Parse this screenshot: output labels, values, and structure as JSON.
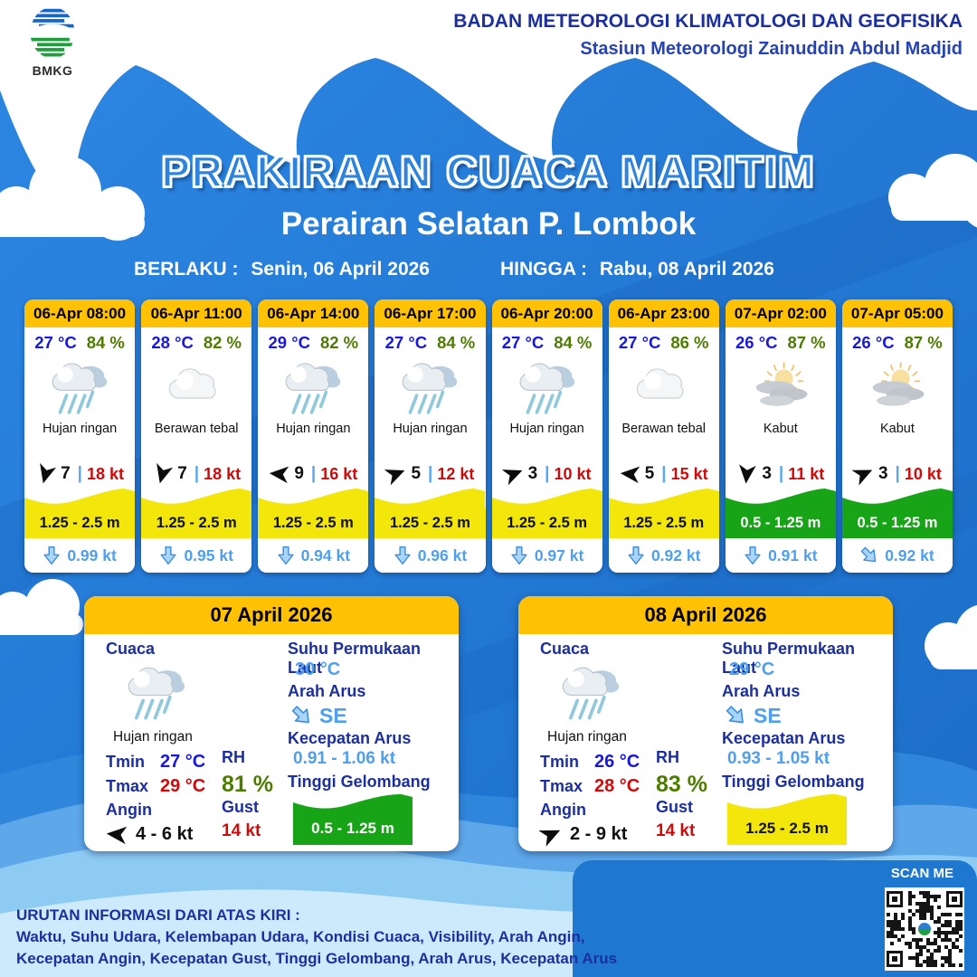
{
  "header": {
    "org_line1": "BADAN METEOROLOGI KLIMATOLOGI DAN GEOFISIKA",
    "org_line2": "Stasiun Meteorologi Zainuddin Abdul Madjid",
    "logo_text": "BMKG"
  },
  "title": {
    "main": "PRAKIRAAN CUACA MARITIM",
    "area": "Perairan Selatan P. Lombok",
    "valid_from_label": "BERLAKU :",
    "valid_from": "Senin, 06 April 2026",
    "valid_to_label": "HINGGA :",
    "valid_to": "Rabu, 08 April 2026"
  },
  "ui": {
    "wind_separator": "|"
  },
  "colors": {
    "primary_blue": "#2176d2",
    "header_yellow": "#ffc103",
    "wave_yellow": "#f2e60a",
    "wave_green": "#17a517",
    "navy_text": "#1c2f9e",
    "temp_blue": "#1717e0",
    "humidity_green": "#4e7c00",
    "gust_red": "#cf0a0a",
    "current_lightblue": "#4d9ff0"
  },
  "hourly": [
    {
      "time": "06-Apr 08:00",
      "temp": "27 °C",
      "humidity": "84 %",
      "icon": "rain",
      "icon_ref": "#ic-rain",
      "condition": "Hujan ringan",
      "wind_dir_deg": 105,
      "wind_speed": "7",
      "wind_gust": "18 kt",
      "wave_height": "1.25 - 2.5 m",
      "wave_level": "yellow",
      "current_dir_deg": 0,
      "current_speed": "0.99 kt"
    },
    {
      "time": "06-Apr 11:00",
      "temp": "28 °C",
      "humidity": "82 %",
      "icon": "cloud",
      "icon_ref": "#ic-cloud",
      "condition": "Berawan tebal",
      "wind_dir_deg": 105,
      "wind_speed": "7",
      "wind_gust": "18 kt",
      "wave_height": "1.25 - 2.5 m",
      "wave_level": "yellow",
      "current_dir_deg": 0,
      "current_speed": "0.95 kt"
    },
    {
      "time": "06-Apr 14:00",
      "temp": "29 °C",
      "humidity": "82 %",
      "icon": "rain",
      "icon_ref": "#ic-rain",
      "condition": "Hujan ringan",
      "wind_dir_deg": 185,
      "wind_speed": "9",
      "wind_gust": "16 kt",
      "wave_height": "1.25 - 2.5 m",
      "wave_level": "yellow",
      "current_dir_deg": 0,
      "current_speed": "0.94 kt"
    },
    {
      "time": "06-Apr 17:00",
      "temp": "27 °C",
      "humidity": "84 %",
      "icon": "rain",
      "icon_ref": "#ic-rain",
      "condition": "Hujan ringan",
      "wind_dir_deg": 338,
      "wind_speed": "5",
      "wind_gust": "12 kt",
      "wave_height": "1.25 - 2.5 m",
      "wave_level": "yellow",
      "current_dir_deg": 0,
      "current_speed": "0.96 kt"
    },
    {
      "time": "06-Apr 20:00",
      "temp": "27 °C",
      "humidity": "84 %",
      "icon": "rain",
      "icon_ref": "#ic-rain",
      "condition": "Hujan ringan",
      "wind_dir_deg": 338,
      "wind_speed": "3",
      "wind_gust": "10 kt",
      "wave_height": "1.25 - 2.5 m",
      "wave_level": "yellow",
      "current_dir_deg": 0,
      "current_speed": "0.97 kt"
    },
    {
      "time": "06-Apr 23:00",
      "temp": "27 °C",
      "humidity": "86 %",
      "icon": "cloud",
      "icon_ref": "#ic-cloud",
      "condition": "Berawan tebal",
      "wind_dir_deg": 185,
      "wind_speed": "5",
      "wind_gust": "15 kt",
      "wave_height": "1.25 - 2.5 m",
      "wave_level": "yellow",
      "current_dir_deg": 0,
      "current_speed": "0.92 kt"
    },
    {
      "time": "07-Apr 02:00",
      "temp": "26 °C",
      "humidity": "87 %",
      "icon": "fog",
      "icon_ref": "#ic-fog",
      "condition": "Kabut",
      "wind_dir_deg": 95,
      "wind_speed": "3",
      "wind_gust": "11 kt",
      "wave_height": "0.5 - 1.25 m",
      "wave_level": "green",
      "current_dir_deg": 0,
      "current_speed": "0.91 kt"
    },
    {
      "time": "07-Apr 05:00",
      "temp": "26 °C",
      "humidity": "87 %",
      "icon": "fog",
      "icon_ref": "#ic-fog",
      "condition": "Kabut",
      "wind_dir_deg": 335,
      "wind_speed": "3",
      "wind_gust": "10 kt",
      "wave_height": "0.5 - 1.25 m",
      "wave_level": "green",
      "current_dir_deg": -45,
      "current_speed": "0.92 kt"
    }
  ],
  "daily_labels": {
    "cuaca": "Cuaca",
    "tmin": "Tmin",
    "tmax": "Tmax",
    "angin": "Angin",
    "rh": "RH",
    "gust": "Gust",
    "sst": "Suhu Permukaan Laut",
    "arah_arus": "Arah Arus",
    "kecepatan_arus": "Kecepatan Arus",
    "tinggi_gelombang": "Tinggi Gelombang"
  },
  "daily": [
    {
      "date": "07 April 2026",
      "icon": "rain",
      "icon_ref": "#ic-rain",
      "condition": "Hujan ringan",
      "tmin": "27 °C",
      "tmax": "29 °C",
      "wind_dir_deg": 185,
      "wind_range": "4 - 6 kt",
      "rh": "81 %",
      "gust": "14 kt",
      "sst": "30 °C",
      "current_dir": "SE",
      "current_dir_deg": -45,
      "current_range": "0.91 - 1.06 kt",
      "wave_height": "0.5 - 1.25 m",
      "wave_level": "green"
    },
    {
      "date": "08 April 2026",
      "icon": "rain",
      "icon_ref": "#ic-rain",
      "condition": "Hujan ringan",
      "tmin": "26 °C",
      "tmax": "28 °C",
      "wind_dir_deg": 335,
      "wind_range": "2 - 9 kt",
      "rh": "83 %",
      "gust": "14 kt",
      "sst": "29 °C",
      "current_dir": "SE",
      "current_dir_deg": -45,
      "current_range": "0.93 - 1.05 kt",
      "wave_height": "1.25 - 2.5 m",
      "wave_level": "yellow"
    }
  ],
  "footer": {
    "heading": "URUTAN INFORMASI DARI ATAS KIRI :",
    "line2": "Waktu, Suhu Udara, Kelembapan Udara, Kondisi Cuaca, Visibility, Arah Angin,",
    "line3": "Kecepatan Angin, Kecepatan Gust, Tinggi Gelombang, Arah Arus, Kecepatan Arus",
    "scan_me": "SCAN ME"
  }
}
